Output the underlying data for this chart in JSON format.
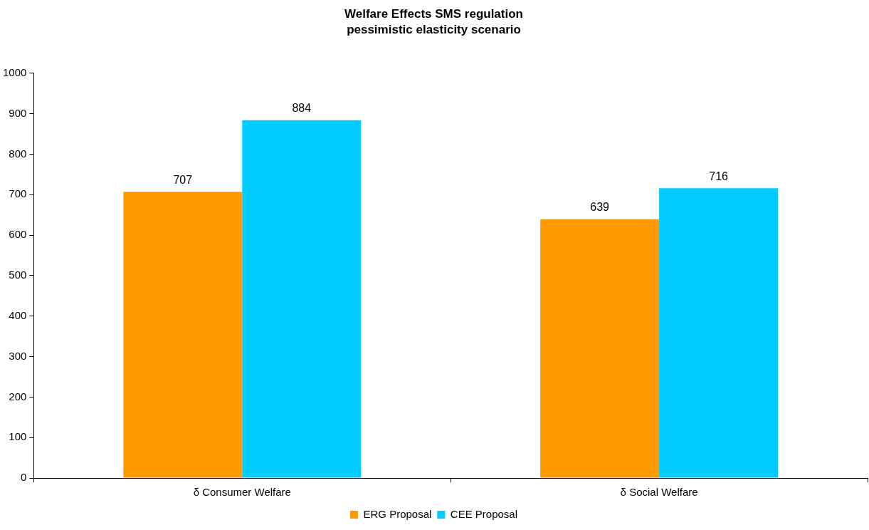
{
  "chart_data": {
    "type": "bar",
    "title": "Welfare Effects SMS regulation",
    "subtitle": "pessimistic elasticity scenario",
    "categories": [
      "δ Consumer Welfare",
      "δ Social Welfare"
    ],
    "series": [
      {
        "name": "ERG Proposal",
        "color": "#ff9900",
        "values": [
          707,
          639
        ]
      },
      {
        "name": "CEE Proposal",
        "color": "#00ccff",
        "values": [
          884,
          716
        ]
      }
    ],
    "ylim": [
      0,
      1000
    ],
    "yticks": [
      0,
      100,
      200,
      300,
      400,
      500,
      600,
      700,
      800,
      900,
      1000
    ],
    "grid": false,
    "legend": "bottom",
    "data_labels": true
  }
}
